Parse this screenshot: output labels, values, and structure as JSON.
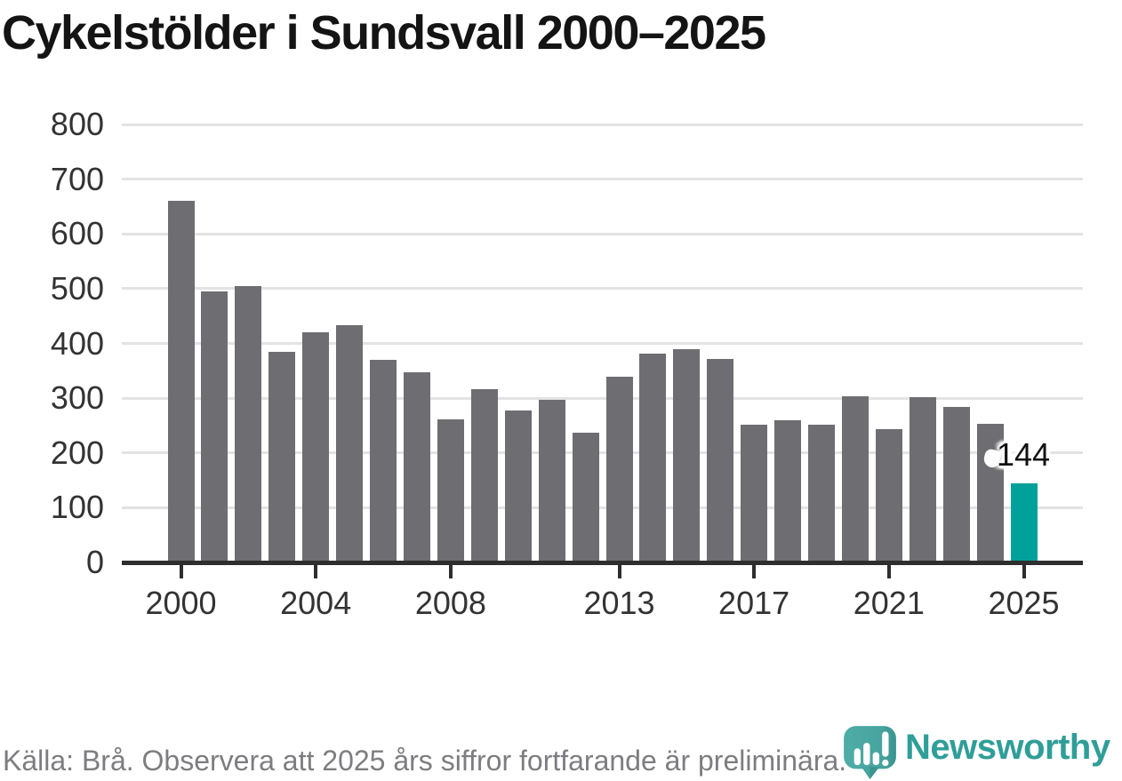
{
  "title": "Cykelstölder i Sundsvall 2000–2025",
  "source_note": "Källa: Brå. Observera att 2025 års siffror fortfarande är preliminära.",
  "annotation": {
    "value_label": "144"
  },
  "brand": {
    "name": "Newsworthy",
    "icon": "bar-chart-speech-bubble-icon"
  },
  "colors": {
    "bar": "#6d6d72",
    "highlight": "#00a19a",
    "grid": "#e3e3e3",
    "axis": "#2e2e2e",
    "tick_label": "#333333",
    "title": "#141414",
    "muted_text": "#7d7d81",
    "brand_teal": "#2f9e98"
  },
  "chart_data": {
    "type": "bar",
    "title": "Cykelstölder i Sundsvall 2000–2025",
    "categories": [
      2000,
      2001,
      2002,
      2003,
      2004,
      2005,
      2006,
      2007,
      2008,
      2009,
      2010,
      2011,
      2012,
      2013,
      2014,
      2015,
      2016,
      2017,
      2018,
      2019,
      2020,
      2021,
      2022,
      2023,
      2024,
      2025
    ],
    "values": [
      660,
      495,
      505,
      385,
      420,
      433,
      370,
      348,
      261,
      317,
      277,
      297,
      237,
      340,
      382,
      389,
      372,
      251,
      260,
      252,
      304,
      243,
      302,
      284,
      254,
      144
    ],
    "highlight_index": 25,
    "highlight_value_label": "144",
    "xlabel": "",
    "ylabel": "",
    "ylim": [
      0,
      800
    ],
    "y_ticks": [
      0,
      100,
      200,
      300,
      400,
      500,
      600,
      700,
      800
    ],
    "x_tick_labels": [
      "2000",
      "2004",
      "2008",
      "2013",
      "2017",
      "2021",
      "2025"
    ],
    "x_tick_indices": [
      0,
      4,
      8,
      13,
      17,
      21,
      25
    ],
    "grid": true,
    "legend": "none"
  }
}
